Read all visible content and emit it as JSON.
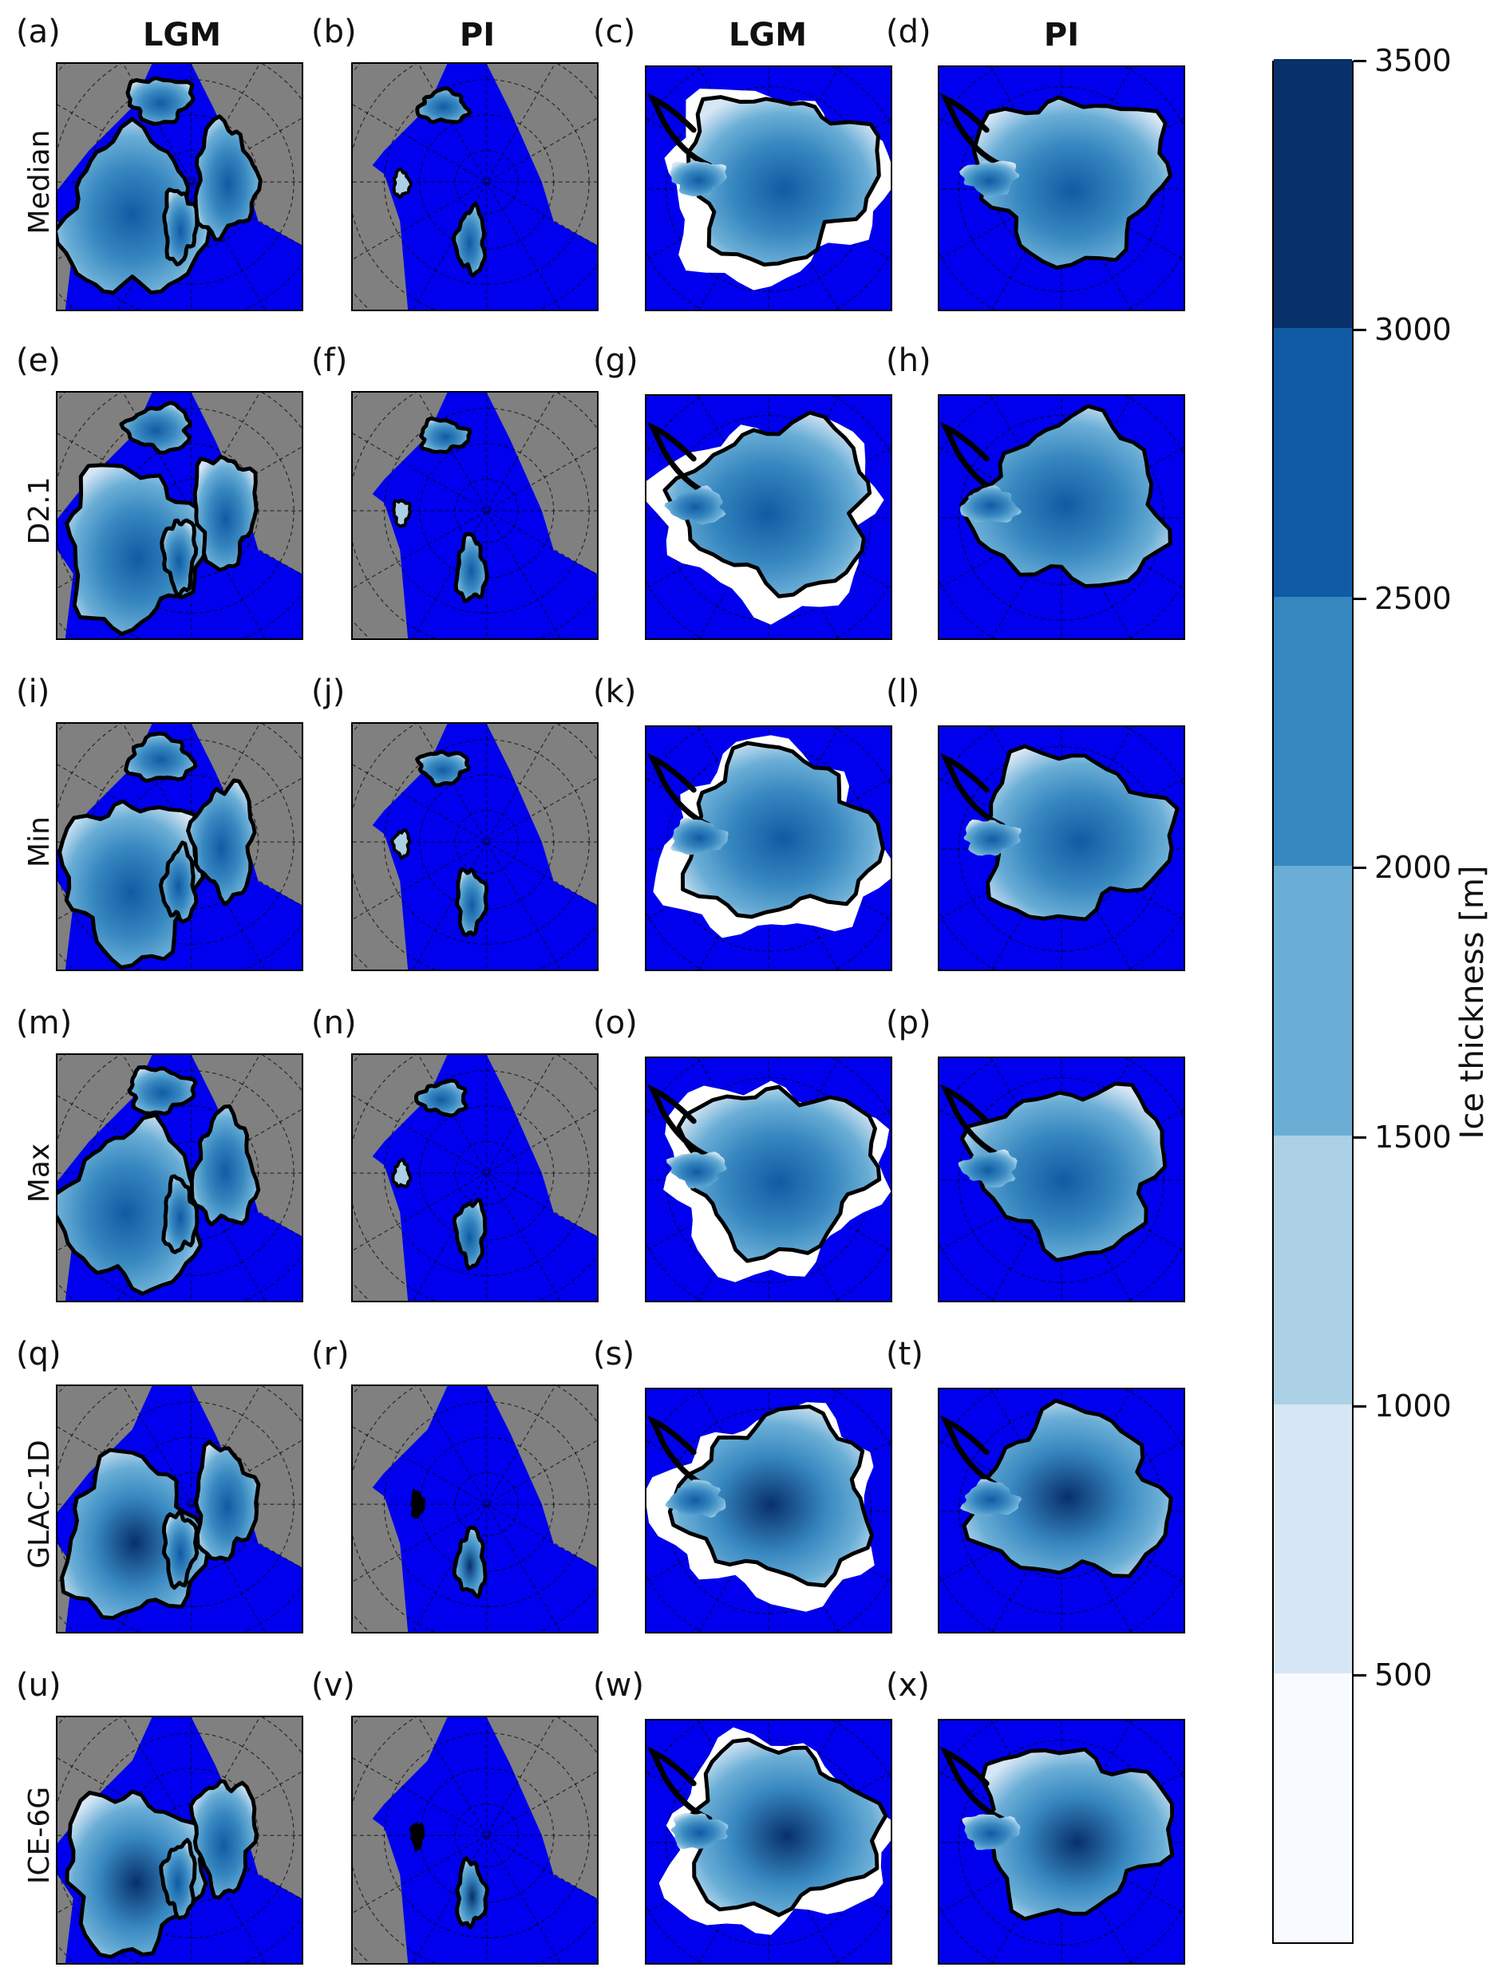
{
  "column_headers": [
    "LGM",
    "PI",
    "LGM",
    "PI"
  ],
  "row_labels": [
    "Median",
    "D2.1",
    "Min",
    "Max",
    "GLAC-1D",
    "ICE-6G"
  ],
  "panel_labels": [
    [
      "(a)",
      "(b)",
      "(c)",
      "(d)"
    ],
    [
      "(e)",
      "(f)",
      "(g)",
      "(h)"
    ],
    [
      "(i)",
      "(j)",
      "(k)",
      "(l)"
    ],
    [
      "(m)",
      "(n)",
      "(o)",
      "(p)"
    ],
    [
      "(q)",
      "(r)",
      "(s)",
      "(t)"
    ],
    [
      "(u)",
      "(v)",
      "(w)",
      "(x)"
    ]
  ],
  "colorbar": {
    "title": "Ice thickness [m]",
    "ticks": [
      "500",
      "1000",
      "1500",
      "2000",
      "2500",
      "3000",
      "3500"
    ],
    "colors": [
      "#f7fbff",
      "#d6e6f4",
      "#abd0e6",
      "#6aaed6",
      "#3787c0",
      "#105ba4",
      "#08306b"
    ]
  },
  "colors": {
    "ocean": "#0000ee",
    "land": "#808080",
    "ice_outline": "#000000"
  }
}
